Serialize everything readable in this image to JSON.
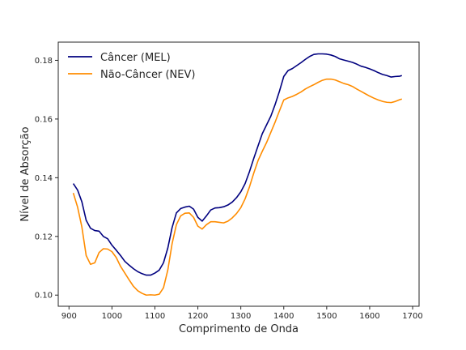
{
  "chart_data": {
    "type": "line",
    "title": "",
    "xlabel": "Comprimento de Onda",
    "ylabel": "Nível de Absorção",
    "xlim": [
      875,
      1715
    ],
    "ylim": [
      0.0962,
      0.1862
    ],
    "xticks": [
      900,
      1000,
      1100,
      1200,
      1300,
      1400,
      1500,
      1600,
      1700
    ],
    "yticks": [
      0.1,
      0.12,
      0.14,
      0.16,
      0.18
    ],
    "ytick_labels": [
      "0.10",
      "0.12",
      "0.14",
      "0.16",
      "0.18"
    ],
    "grid": false,
    "legend_position": "top-left",
    "series": [
      {
        "name": "Câncer (MEL)",
        "color": "#00007f",
        "x": [
          910,
          920,
          930,
          940,
          950,
          960,
          970,
          980,
          990,
          1000,
          1010,
          1020,
          1030,
          1040,
          1050,
          1060,
          1070,
          1080,
          1090,
          1100,
          1110,
          1120,
          1130,
          1140,
          1150,
          1160,
          1170,
          1180,
          1190,
          1200,
          1210,
          1220,
          1230,
          1240,
          1250,
          1260,
          1270,
          1280,
          1290,
          1300,
          1310,
          1320,
          1330,
          1340,
          1350,
          1360,
          1370,
          1380,
          1390,
          1400,
          1410,
          1420,
          1430,
          1440,
          1450,
          1460,
          1470,
          1480,
          1490,
          1500,
          1510,
          1520,
          1530,
          1540,
          1550,
          1560,
          1570,
          1580,
          1590,
          1600,
          1610,
          1620,
          1630,
          1640,
          1650,
          1660,
          1670,
          1675
        ],
        "y": [
          0.138,
          0.1358,
          0.1318,
          0.1255,
          0.1228,
          0.122,
          0.1218,
          0.12,
          0.1192,
          0.117,
          0.1153,
          0.1135,
          0.1115,
          0.1102,
          0.109,
          0.108,
          0.1073,
          0.1068,
          0.1068,
          0.1075,
          0.1085,
          0.111,
          0.116,
          0.123,
          0.128,
          0.1295,
          0.13,
          0.1303,
          0.1293,
          0.1265,
          0.1252,
          0.127,
          0.129,
          0.1297,
          0.1298,
          0.1301,
          0.1307,
          0.1317,
          0.1332,
          0.1352,
          0.138,
          0.142,
          0.1465,
          0.1508,
          0.155,
          0.158,
          0.161,
          0.165,
          0.1695,
          0.1745,
          0.1765,
          0.1772,
          0.1782,
          0.1792,
          0.1803,
          0.1813,
          0.182,
          0.1822,
          0.1822,
          0.1821,
          0.1818,
          0.1813,
          0.1805,
          0.1801,
          0.1797,
          0.1793,
          0.1787,
          0.178,
          0.1776,
          0.1771,
          0.1765,
          0.1758,
          0.1752,
          0.1748,
          0.1743,
          0.1745,
          0.1746,
          0.1748
        ]
      },
      {
        "name": "Não-Câncer (NEV)",
        "color": "#ff8c00",
        "x": [
          910,
          920,
          930,
          940,
          950,
          960,
          970,
          980,
          990,
          1000,
          1010,
          1020,
          1030,
          1040,
          1050,
          1060,
          1070,
          1080,
          1090,
          1100,
          1110,
          1120,
          1130,
          1140,
          1150,
          1160,
          1170,
          1180,
          1190,
          1200,
          1210,
          1220,
          1230,
          1240,
          1250,
          1260,
          1270,
          1280,
          1290,
          1300,
          1310,
          1320,
          1330,
          1340,
          1350,
          1360,
          1370,
          1380,
          1390,
          1400,
          1410,
          1420,
          1430,
          1440,
          1450,
          1460,
          1470,
          1480,
          1490,
          1500,
          1510,
          1520,
          1530,
          1540,
          1550,
          1560,
          1570,
          1580,
          1590,
          1600,
          1610,
          1620,
          1630,
          1640,
          1650,
          1660,
          1670,
          1675
        ],
        "y": [
          0.1348,
          0.13,
          0.1232,
          0.1135,
          0.1105,
          0.111,
          0.1145,
          0.1158,
          0.1157,
          0.1148,
          0.1128,
          0.1098,
          0.1075,
          0.1052,
          0.103,
          0.1015,
          0.1006,
          0.1,
          0.1001,
          0.1,
          0.1003,
          0.1025,
          0.1085,
          0.1175,
          0.124,
          0.127,
          0.1279,
          0.128,
          0.1265,
          0.1235,
          0.1225,
          0.124,
          0.125,
          0.125,
          0.1248,
          0.1246,
          0.1252,
          0.1263,
          0.1278,
          0.1298,
          0.1328,
          0.1368,
          0.1415,
          0.1458,
          0.149,
          0.152,
          0.1555,
          0.159,
          0.1628,
          0.1665,
          0.1672,
          0.1677,
          0.1684,
          0.1692,
          0.1702,
          0.171,
          0.1717,
          0.1725,
          0.1732,
          0.1736,
          0.1736,
          0.1733,
          0.1727,
          0.1721,
          0.1717,
          0.1711,
          0.1702,
          0.1694,
          0.1686,
          0.1678,
          0.1671,
          0.1665,
          0.166,
          0.1657,
          0.1656,
          0.166,
          0.1666,
          0.1668
        ]
      }
    ]
  }
}
